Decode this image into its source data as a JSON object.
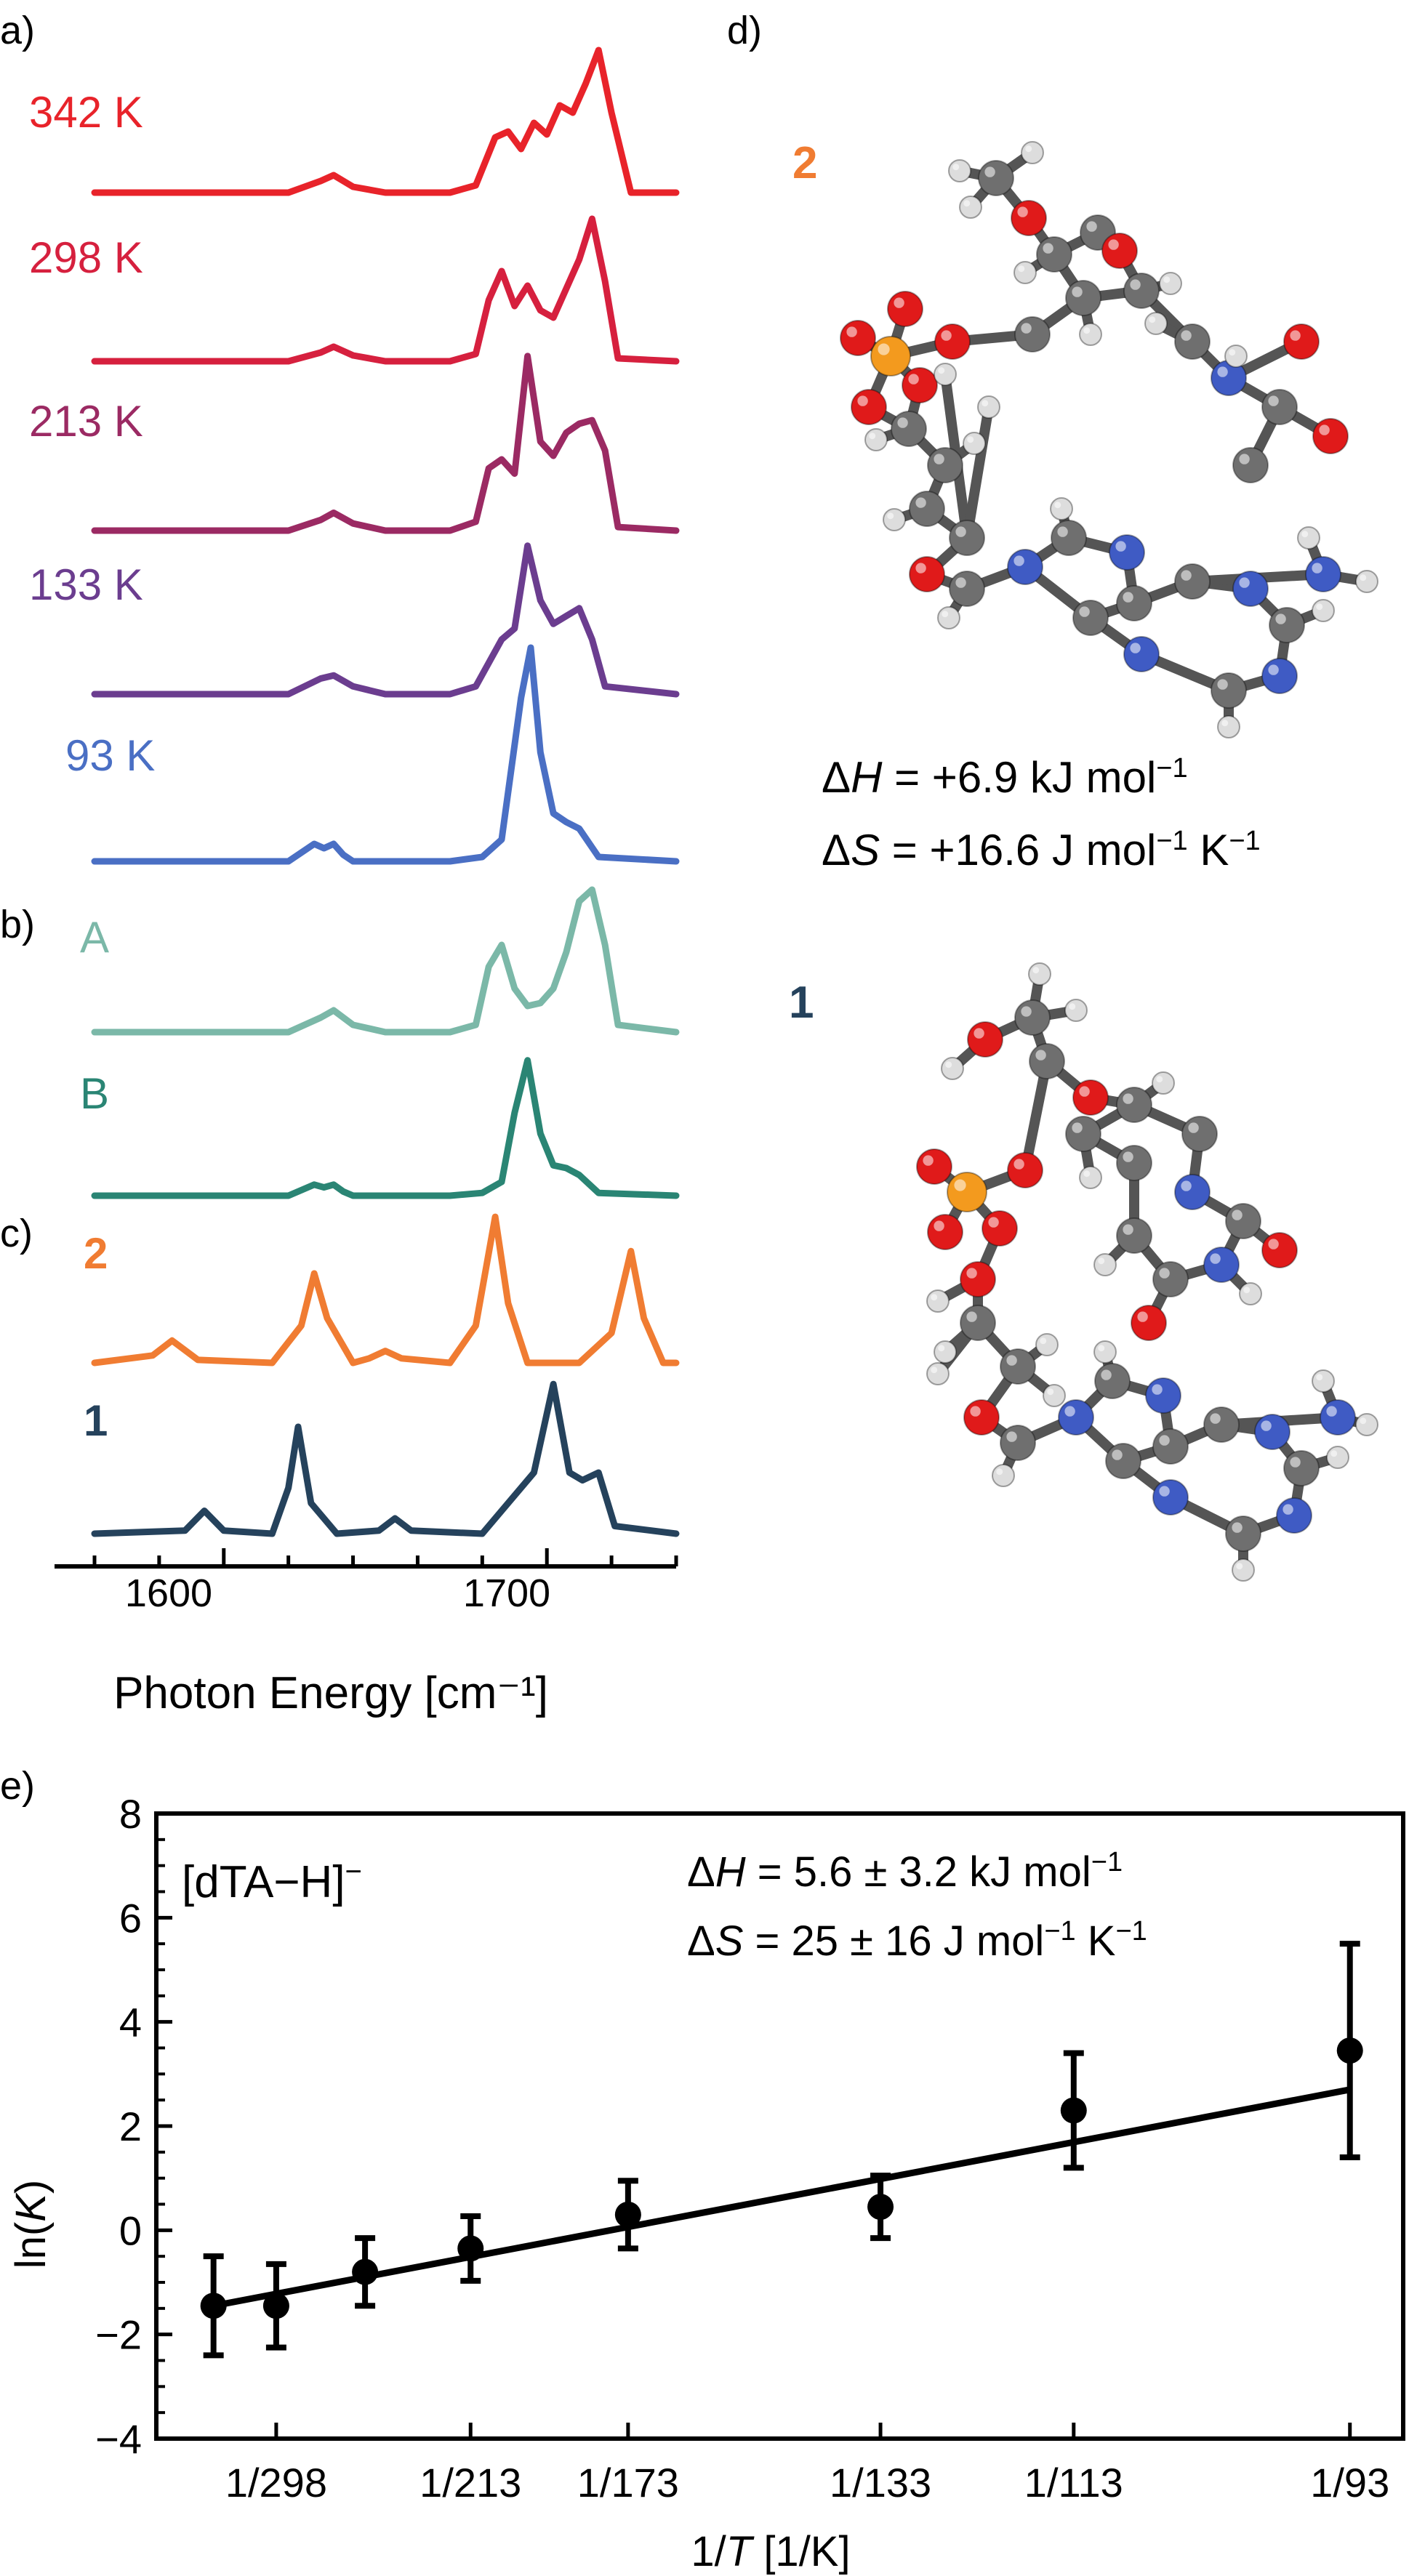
{
  "panels": {
    "a": "a)",
    "b": "b)",
    "c": "c)",
    "d": "d)",
    "e": "e)"
  },
  "colors": {
    "342 K": "#e8232a",
    "298 K": "#d6203e",
    "213 K": "#9b2a63",
    "133 K": "#6b3d8f",
    "93 K": "#4a6fc4",
    "A": "#7bb8a8",
    "B": "#2a8574",
    "2": "#f07c32",
    "1": "#25425c",
    "oxygen": "#e01a1a",
    "carbon": "#6f6f6f",
    "hydrogen": "#dddddd",
    "nitrogen": "#3f5bc4",
    "phosphorus": "#f39a1e"
  },
  "chart_data": [
    {
      "type": "line",
      "xlabel": "Photon Energy [cm⁻¹]",
      "x_ticks": [
        "1600",
        "1700"
      ],
      "xlim": [
        1560,
        1740
      ],
      "series": [
        {
          "name": "342 K",
          "panel": "a",
          "x": [
            1560,
            1590,
            1620,
            1630,
            1634,
            1640,
            1650,
            1670,
            1678,
            1684,
            1688,
            1692,
            1696,
            1700,
            1704,
            1708,
            1712,
            1716,
            1720,
            1726,
            1740
          ],
          "y": [
            0,
            0,
            0,
            0.08,
            0.12,
            0.04,
            0,
            0,
            0.05,
            0.38,
            0.42,
            0.3,
            0.48,
            0.4,
            0.6,
            0.55,
            0.75,
            0.98,
            0.55,
            0,
            0
          ]
        },
        {
          "name": "298 K",
          "panel": "a",
          "x": [
            1560,
            1590,
            1620,
            1630,
            1634,
            1640,
            1650,
            1670,
            1678,
            1682,
            1686,
            1690,
            1694,
            1698,
            1702,
            1706,
            1710,
            1714,
            1718,
            1722,
            1740
          ],
          "y": [
            0,
            0,
            0,
            0.06,
            0.1,
            0.04,
            0,
            0,
            0.05,
            0.42,
            0.62,
            0.38,
            0.52,
            0.35,
            0.3,
            0.5,
            0.7,
            0.98,
            0.55,
            0.02,
            0
          ]
        },
        {
          "name": "213 K",
          "panel": "a",
          "x": [
            1560,
            1590,
            1620,
            1630,
            1634,
            1640,
            1650,
            1670,
            1678,
            1682,
            1686,
            1690,
            1694,
            1698,
            1702,
            1706,
            1710,
            1714,
            1718,
            1722,
            1740
          ],
          "y": [
            0,
            0,
            0,
            0.06,
            0.1,
            0.04,
            0,
            0,
            0.05,
            0.35,
            0.4,
            0.32,
            0.98,
            0.5,
            0.42,
            0.55,
            0.6,
            0.62,
            0.45,
            0.02,
            0
          ]
        },
        {
          "name": "133 K",
          "panel": "a",
          "x": [
            1560,
            1590,
            1620,
            1630,
            1634,
            1640,
            1650,
            1670,
            1678,
            1686,
            1690,
            1694,
            1698,
            1702,
            1706,
            1710,
            1714,
            1718,
            1740
          ],
          "y": [
            0,
            0,
            0,
            0.1,
            0.12,
            0.05,
            0,
            0,
            0.05,
            0.35,
            0.42,
            0.95,
            0.6,
            0.45,
            0.5,
            0.55,
            0.35,
            0.05,
            0
          ]
        },
        {
          "name": "93 K",
          "panel": "a",
          "x": [
            1560,
            1590,
            1620,
            1628,
            1631,
            1634,
            1637,
            1640,
            1650,
            1670,
            1680,
            1686,
            1692,
            1695,
            1698,
            1702,
            1706,
            1710,
            1716,
            1740
          ],
          "y": [
            0,
            0,
            0,
            0.08,
            0.06,
            0.08,
            0.03,
            0,
            0,
            0,
            0.02,
            0.1,
            0.75,
            0.98,
            0.5,
            0.22,
            0.18,
            0.15,
            0.02,
            0
          ]
        }
      ]
    },
    {
      "type": "line",
      "series": [
        {
          "name": "A",
          "panel": "b",
          "x": [
            1560,
            1590,
            1620,
            1630,
            1634,
            1640,
            1650,
            1670,
            1678,
            1682,
            1686,
            1690,
            1694,
            1698,
            1702,
            1706,
            1710,
            1714,
            1718,
            1722,
            1740
          ],
          "y": [
            0,
            0,
            0,
            0.1,
            0.15,
            0.05,
            0,
            0,
            0.05,
            0.45,
            0.6,
            0.3,
            0.18,
            0.2,
            0.3,
            0.55,
            0.9,
            0.98,
            0.6,
            0.05,
            0
          ]
        },
        {
          "name": "B",
          "panel": "b",
          "x": [
            1560,
            1590,
            1620,
            1628,
            1631,
            1634,
            1637,
            1640,
            1650,
            1670,
            1680,
            1686,
            1690,
            1694,
            1698,
            1702,
            1706,
            1710,
            1716,
            1740
          ],
          "y": [
            0,
            0,
            0,
            0.08,
            0.06,
            0.08,
            0.03,
            0,
            0,
            0,
            0.02,
            0.1,
            0.6,
            0.98,
            0.45,
            0.22,
            0.2,
            0.15,
            0.02,
            0
          ]
        }
      ]
    },
    {
      "type": "line",
      "series": [
        {
          "name": "2",
          "panel": "c",
          "x": [
            1560,
            1578,
            1584,
            1592,
            1615,
            1624,
            1628,
            1632,
            1640,
            1645,
            1650,
            1655,
            1670,
            1678,
            1684,
            1688,
            1694,
            1710,
            1720,
            1726,
            1730,
            1736,
            1740
          ],
          "y": [
            0,
            0.05,
            0.15,
            0.02,
            0,
            0.25,
            0.6,
            0.3,
            0,
            0.03,
            0.08,
            0.03,
            0,
            0.25,
            0.98,
            0.4,
            0,
            0,
            0.2,
            0.75,
            0.3,
            0,
            0
          ]
        },
        {
          "name": "1",
          "panel": "c",
          "x": [
            1560,
            1588,
            1594,
            1600,
            1615,
            1620,
            1623,
            1627,
            1635,
            1648,
            1653,
            1658,
            1680,
            1696,
            1702,
            1707,
            1711,
            1716,
            1721,
            1740
          ],
          "y": [
            0,
            0.02,
            0.15,
            0.02,
            0,
            0.3,
            0.7,
            0.2,
            0,
            0.02,
            0.1,
            0.02,
            0,
            0.4,
            0.98,
            0.4,
            0.35,
            0.4,
            0.05,
            0
          ]
        }
      ]
    },
    {
      "type": "scatter",
      "xlabel": "1/T [1/K]",
      "ylabel": "ln(K)",
      "ylim": [
        -4,
        8
      ],
      "y_ticks": [
        "−4",
        "−2",
        "0",
        "2",
        "4",
        "6",
        "8"
      ],
      "x_ticks": [
        {
          "label": "1/298",
          "x": 0.003356
        },
        {
          "label": "1/213",
          "x": 0.004695
        },
        {
          "label": "1/173",
          "x": 0.00578
        },
        {
          "label": "1/133",
          "x": 0.007519
        },
        {
          "label": "1/113",
          "x": 0.00885
        },
        {
          "label": "1/93",
          "x": 0.010753
        }
      ],
      "xlim": [
        0.00253,
        0.01112
      ],
      "points": [
        {
          "x": 0.002924,
          "y": -1.45,
          "yerr": 0.95
        },
        {
          "x": 0.003356,
          "y": -1.45,
          "yerr": 0.8
        },
        {
          "x": 0.003968,
          "y": -0.8,
          "yerr": 0.65
        },
        {
          "x": 0.004695,
          "y": -0.35,
          "yerr": 0.62
        },
        {
          "x": 0.00578,
          "y": 0.3,
          "yerr": 0.65
        },
        {
          "x": 0.007519,
          "y": 0.45,
          "yerr": 0.6
        },
        {
          "x": 0.00885,
          "y": 2.3,
          "yerr": 1.1
        },
        {
          "x": 0.010753,
          "y": 3.45,
          "yerr": 2.05
        }
      ],
      "fit": {
        "x": [
          0.002924,
          0.010753
        ],
        "y": [
          -1.45,
          2.7
        ]
      },
      "annotations": {
        "species_prefix": "[dTA−H]",
        "species_sup": "−",
        "dH_value": " = 5.6 ± 3.2 kJ mol",
        "dS_value": " = 25 ± 16 J mol"
      }
    }
  ],
  "spectra_labels": {
    "342 K": "342 K",
    "298 K": "298 K",
    "213 K": "213 K",
    "133 K": "133 K",
    "93 K": "93 K",
    "A": "A",
    "B": "B",
    "2": "2",
    "1": "1"
  },
  "structures": {
    "top_label": "2",
    "bottom_label": "1",
    "dH_value": " = +6.9 kJ mol",
    "dS_value": " = +16.6 J mol"
  },
  "common": {
    "delta": "Δ",
    "H": "H",
    "S": "S",
    "minus_one": "−1",
    "K_unit": " K",
    "fit_ln": "ln(",
    "fit_K": "K",
    "close_paren": ")",
    "x_one_over": "1/",
    "x_T": "T",
    "x_units": " [1/K]"
  }
}
